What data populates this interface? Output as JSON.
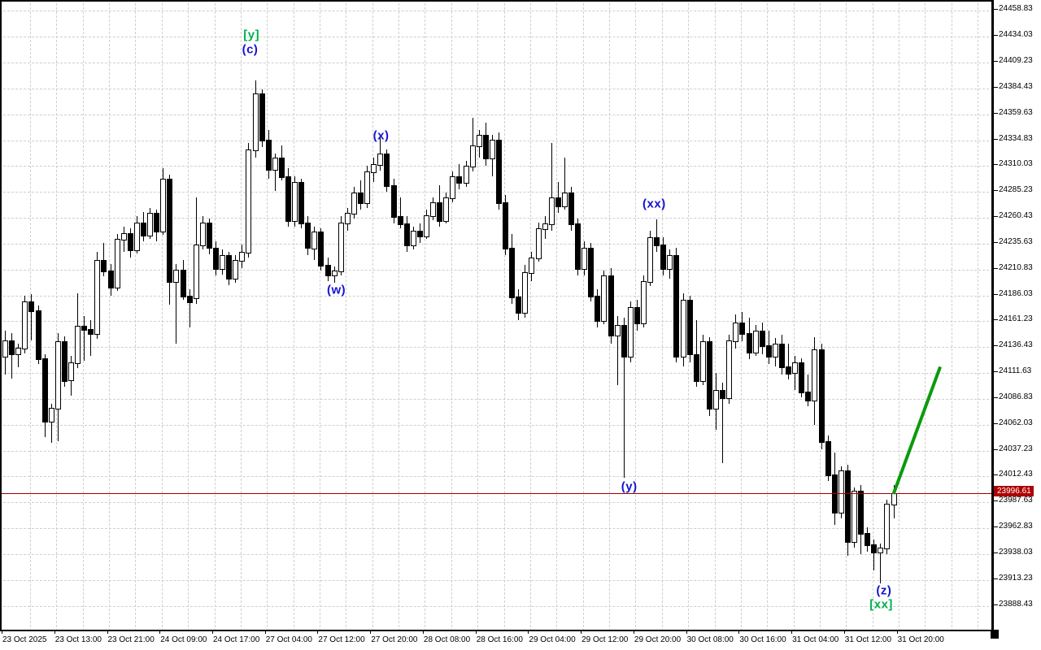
{
  "chart_data": {
    "type": "candlestick",
    "title": "",
    "grid": true,
    "colors": {
      "background": "#ffffff",
      "foreground": "#000000",
      "grid": "#cfcfcf",
      "bull_body": "#ffffff",
      "bear_body": "#000000",
      "blue": "#1414d2",
      "green": "#00b050",
      "trendline_green": "#0c9a0c",
      "current_price_line": "#990000",
      "current_price_tag_bg": "#ae0000"
    },
    "y_axis": {
      "labels": [
        "24458.83",
        "24434.03",
        "24409.23",
        "24384.43",
        "24359.63",
        "24334.83",
        "24310.03",
        "24285.23",
        "24260.43",
        "24235.63",
        "24210.83",
        "24186.03",
        "24161.23",
        "24136.43",
        "24111.63",
        "24086.83",
        "24062.03",
        "24037.23",
        "24012.43",
        "23987.63",
        "23962.83",
        "23938.03",
        "23913.23",
        "23888.43"
      ],
      "min": 23888.43,
      "max": 24458.83,
      "step": 24.8
    },
    "x_axis": {
      "labels": [
        "23 Oct 2025",
        "23 Oct 13:00",
        "23 Oct 21:00",
        "24 Oct 09:00",
        "24 Oct 17:00",
        "27 Oct 04:00",
        "27 Oct 12:00",
        "27 Oct 20:00",
        "28 Oct 08:00",
        "28 Oct 16:00",
        "29 Oct 04:00",
        "29 Oct 12:00",
        "29 Oct 20:00",
        "30 Oct 08:00",
        "30 Oct 16:00",
        "31 Oct 04:00",
        "31 Oct 12:00",
        "31 Oct 20:00"
      ],
      "candles_per_label": 8
    },
    "current_price": {
      "value": "23996.61"
    },
    "candles": [
      [
        24128,
        24152,
        24110,
        24143
      ],
      [
        24143,
        24150,
        24106,
        24130
      ],
      [
        24130,
        24140,
        24117,
        24136
      ],
      [
        24136,
        24186,
        24130,
        24180
      ],
      [
        24180,
        24187,
        24143,
        24172
      ],
      [
        24172,
        24176,
        24120,
        24126
      ],
      [
        24126,
        24130,
        24050,
        24066
      ],
      [
        24066,
        24082,
        24045,
        24078
      ],
      [
        24078,
        24150,
        24046,
        24142
      ],
      [
        24142,
        24147,
        24098,
        24105
      ],
      [
        24105,
        24128,
        24090,
        24122
      ],
      [
        24122,
        24188,
        24116,
        24157
      ],
      [
        24157,
        24166,
        24123,
        24154
      ],
      [
        24154,
        24162,
        24128,
        24150
      ],
      [
        24150,
        24228,
        24144,
        24220
      ],
      [
        24220,
        24236,
        24204,
        24210
      ],
      [
        24210,
        24216,
        24186,
        24194
      ],
      [
        24194,
        24245,
        24190,
        24240
      ],
      [
        24240,
        24252,
        24228,
        24246
      ],
      [
        24246,
        24250,
        24222,
        24230
      ],
      [
        24230,
        24262,
        24226,
        24256
      ],
      [
        24256,
        24266,
        24238,
        24244
      ],
      [
        24244,
        24270,
        24240,
        24265
      ],
      [
        24265,
        24268,
        24238,
        24248
      ],
      [
        24248,
        24308,
        24244,
        24298
      ],
      [
        24298,
        24302,
        24177,
        24200
      ],
      [
        24200,
        24216,
        24140,
        24211
      ],
      [
        24211,
        24220,
        24182,
        24186
      ],
      [
        24186,
        24192,
        24155,
        24180
      ],
      [
        24184,
        24280,
        24178,
        24235
      ],
      [
        24235,
        24262,
        24230,
        24256
      ],
      [
        24256,
        24260,
        24225,
        24232
      ],
      [
        24232,
        24238,
        24205,
        24212
      ],
      [
        24212,
        24230,
        24206,
        24225
      ],
      [
        24225,
        24228,
        24196,
        24203
      ],
      [
        24203,
        24225,
        24198,
        24220
      ],
      [
        24220,
        24235,
        24212,
        24228
      ],
      [
        24228,
        24332,
        24222,
        24326
      ],
      [
        24326,
        24392,
        24318,
        24380
      ],
      [
        24380,
        24384,
        24328,
        24335
      ],
      [
        24335,
        24345,
        24298,
        24307
      ],
      [
        24307,
        24322,
        24286,
        24318
      ],
      [
        24318,
        24330,
        24296,
        24300
      ],
      [
        24300,
        24308,
        24252,
        24258
      ],
      [
        24258,
        24300,
        24252,
        24295
      ],
      [
        24295,
        24298,
        24250,
        24256
      ],
      [
        24256,
        24262,
        24225,
        24232
      ],
      [
        24232,
        24252,
        24220,
        24247
      ],
      [
        24247,
        24250,
        24210,
        24215
      ],
      [
        24215,
        24222,
        24200,
        24206
      ],
      [
        24206,
        24214,
        24198,
        24210
      ],
      [
        24210,
        24262,
        24205,
        24256
      ],
      [
        24256,
        24270,
        24248,
        24265
      ],
      [
        24265,
        24290,
        24260,
        24285
      ],
      [
        24285,
        24296,
        24268,
        24275
      ],
      [
        24275,
        24310,
        24270,
        24305
      ],
      [
        24305,
        24318,
        24295,
        24312
      ],
      [
        24312,
        24338,
        24306,
        24322
      ],
      [
        24322,
        24326,
        24285,
        24292
      ],
      [
        24292,
        24298,
        24255,
        24262
      ],
      [
        24262,
        24280,
        24250,
        24255
      ],
      [
        24255,
        24262,
        24228,
        24235
      ],
      [
        24235,
        24252,
        24230,
        24248
      ],
      [
        24248,
        24255,
        24236,
        24243
      ],
      [
        24243,
        24268,
        24240,
        24263
      ],
      [
        24263,
        24280,
        24258,
        24275
      ],
      [
        24275,
        24292,
        24252,
        24258
      ],
      [
        24258,
        24285,
        24255,
        24280
      ],
      [
        24280,
        24305,
        24275,
        24300
      ],
      [
        24300,
        24312,
        24288,
        24295
      ],
      [
        24295,
        24315,
        24290,
        24310
      ],
      [
        24310,
        24356,
        24305,
        24330
      ],
      [
        24330,
        24345,
        24318,
        24340
      ],
      [
        24340,
        24352,
        24310,
        24318
      ],
      [
        24318,
        24340,
        24300,
        24335
      ],
      [
        24335,
        24342,
        24268,
        24275
      ],
      [
        24275,
        24282,
        24225,
        24232
      ],
      [
        24232,
        24245,
        24178,
        24185
      ],
      [
        24185,
        24192,
        24162,
        24170
      ],
      [
        24170,
        24215,
        24165,
        24208
      ],
      [
        24208,
        24228,
        24200,
        24222
      ],
      [
        24222,
        24256,
        24218,
        24250
      ],
      [
        24250,
        24262,
        24240,
        24255
      ],
      [
        24255,
        24332,
        24248,
        24280
      ],
      [
        24280,
        24295,
        24265,
        24272
      ],
      [
        24272,
        24318,
        24268,
        24285
      ],
      [
        24285,
        24290,
        24248,
        24255
      ],
      [
        24255,
        24260,
        24205,
        24212
      ],
      [
        24212,
        24238,
        24205,
        24232
      ],
      [
        24232,
        24236,
        24180,
        24186
      ],
      [
        24186,
        24192,
        24155,
        24162
      ],
      [
        24162,
        24210,
        24158,
        24205
      ],
      [
        24205,
        24212,
        24140,
        24148
      ],
      [
        24148,
        24166,
        24100,
        24158
      ],
      [
        24158,
        24165,
        24011,
        24128
      ],
      [
        24128,
        24180,
        24122,
        24175
      ],
      [
        24175,
        24182,
        24152,
        24160
      ],
      [
        24160,
        24205,
        24155,
        24200
      ],
      [
        24200,
        24248,
        24195,
        24242
      ],
      [
        24242,
        24259,
        24228,
        24235
      ],
      [
        24235,
        24242,
        24205,
        24212
      ],
      [
        24212,
        24230,
        24202,
        24225
      ],
      [
        24225,
        24232,
        24122,
        24128
      ],
      [
        24128,
        24188,
        24118,
        24182
      ],
      [
        24182,
        24186,
        24122,
        24130
      ],
      [
        24130,
        24162,
        24098,
        24105
      ],
      [
        24105,
        24148,
        24100,
        24142
      ],
      [
        24142,
        24146,
        24070,
        24078
      ],
      [
        24078,
        24112,
        24057,
        24095
      ],
      [
        24095,
        24102,
        24025,
        24088
      ],
      [
        24088,
        24148,
        24082,
        24143
      ],
      [
        24143,
        24168,
        24135,
        24160
      ],
      [
        24160,
        24170,
        24142,
        24150
      ],
      [
        24150,
        24165,
        24125,
        24132
      ],
      [
        24132,
        24158,
        24128,
        24152
      ],
      [
        24152,
        24160,
        24130,
        24138
      ],
      [
        24138,
        24152,
        24120,
        24128
      ],
      [
        24128,
        24145,
        24118,
        24140
      ],
      [
        24140,
        24148,
        24110,
        24118
      ],
      [
        24118,
        24140,
        24105,
        24112
      ],
      [
        24112,
        24128,
        24095,
        24122
      ],
      [
        24122,
        24126,
        24088,
        24094
      ],
      [
        24094,
        24110,
        24080,
        24086
      ],
      [
        24086,
        24146,
        24062,
        24134
      ],
      [
        24134,
        24140,
        24038,
        24046
      ],
      [
        24046,
        24052,
        24008,
        24014
      ],
      [
        24014,
        24035,
        23966,
        23978
      ],
      [
        23978,
        24022,
        23972,
        24018
      ],
      [
        24018,
        24024,
        23936,
        23950
      ],
      [
        23950,
        24002,
        23944,
        23999
      ],
      [
        23999,
        24004,
        23938,
        23958
      ],
      [
        23958,
        23964,
        23940,
        23947
      ],
      [
        23947,
        23952,
        23922,
        23940
      ],
      [
        23940,
        23948,
        23910,
        23944
      ],
      [
        23944,
        23990,
        23938,
        23986
      ],
      [
        23986,
        24004,
        23972,
        23996.6
      ]
    ],
    "annotations": [
      {
        "text": "[y]",
        "color": "green",
        "index": 37.4,
        "price": 24436
      },
      {
        "text": "(c)",
        "color": "blue",
        "index": 37.2,
        "price": 24422
      },
      {
        "text": "(x)",
        "color": "blue",
        "index": 57.1,
        "price": 24339
      },
      {
        "text": "(w)",
        "color": "blue",
        "index": 50.3,
        "price": 24191
      },
      {
        "text": "(xx)",
        "color": "blue",
        "index": 98.6,
        "price": 24274
      },
      {
        "text": "(y)",
        "color": "blue",
        "index": 94.8,
        "price": 24003
      },
      {
        "text": "(z)",
        "color": "blue",
        "index": 133.5,
        "price": 23903
      },
      {
        "text": "[xx]",
        "color": "green",
        "index": 133.1,
        "price": 23890
      }
    ],
    "trendline": {
      "from": {
        "index": 135.2,
        "price": 23994
      },
      "to": {
        "index": 142.3,
        "price": 24116
      },
      "width": 4
    }
  }
}
